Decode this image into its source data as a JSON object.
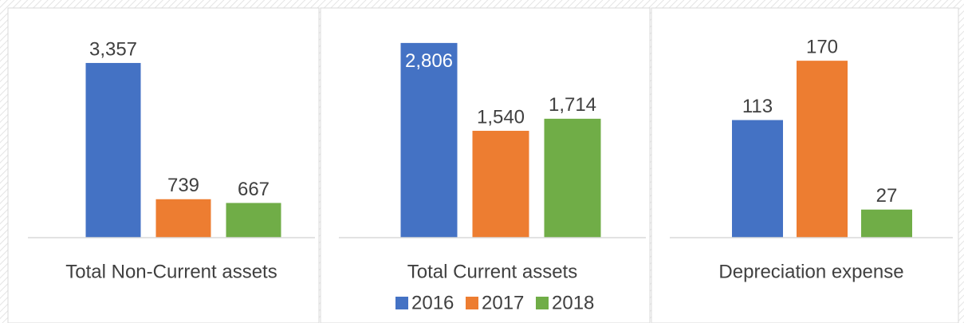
{
  "chart_data": [
    {
      "type": "bar",
      "categories": [
        "Total Non-Current assets"
      ],
      "ylim": [
        0,
        4000
      ],
      "series": [
        {
          "values": [
            3357
          ],
          "value_labels": [
            "3,357"
          ]
        },
        {
          "values": [
            739
          ]
        },
        {
          "values": [
            667
          ]
        }
      ]
    },
    {
      "type": "bar",
      "categories": [
        "Total Current assets"
      ],
      "ylim": [
        0,
        3000
      ],
      "series": [
        {
          "values": [
            2806
          ],
          "value_labels": [
            "2,806"
          ]
        },
        {
          "values": [
            1540
          ],
          "value_labels": [
            "1,540"
          ]
        },
        {
          "values": [
            1714
          ],
          "value_labels": [
            "1,714"
          ]
        }
      ]
    },
    {
      "type": "bar",
      "categories": [
        "Depreciation expense"
      ],
      "ylim": [
        0,
        200
      ],
      "series": [
        {
          "values": [
            113
          ]
        },
        {
          "values": [
            170
          ]
        },
        {
          "values": [
            27
          ]
        }
      ]
    }
  ],
  "legend": {
    "series": [
      {
        "name": "2016",
        "color": "#4472c4"
      },
      {
        "name": "2017",
        "color": "#ed7d31"
      },
      {
        "name": "2018",
        "color": "#70ad47"
      }
    ]
  }
}
